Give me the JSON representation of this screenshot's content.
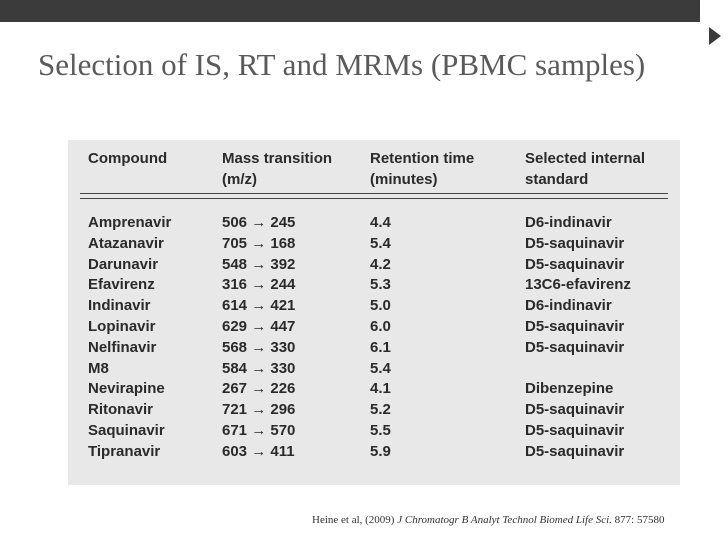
{
  "title": "Selection of IS, RT and MRMs (PBMC samples)",
  "table": {
    "headers": [
      [
        "Compound"
      ],
      [
        "Mass transition",
        "(m/z)"
      ],
      [
        "Retention time",
        "(minutes)"
      ],
      [
        "Selected internal",
        "standard"
      ]
    ],
    "rows": [
      [
        "Amprenavir",
        "506 → 245",
        "4.4",
        "D6-indinavir"
      ],
      [
        "Atazanavir",
        "705 → 168",
        "5.4",
        "D5-saquinavir"
      ],
      [
        "Darunavir",
        "548 → 392",
        "4.2",
        "D5-saquinavir"
      ],
      [
        "Efavirenz",
        "316 → 244",
        "5.3",
        "13C6-efavirenz"
      ],
      [
        "Indinavir",
        "614 → 421",
        "5.0",
        "D6-indinavir"
      ],
      [
        "Lopinavir",
        "629 → 447",
        "6.0",
        "D5-saquinavir"
      ],
      [
        "Nelfinavir",
        "568 → 330",
        "6.1",
        "D5-saquinavir"
      ],
      [
        "M8",
        "584 → 330",
        "5.4"
      ],
      [
        "Nevirapine",
        "267 → 226",
        "4.1",
        "Dibenzepine"
      ],
      [
        "Ritonavir",
        "721 → 296",
        "5.2",
        "D5-saquinavir"
      ],
      [
        "Saquinavir",
        "671 → 570",
        "5.5",
        "D5-saquinavir"
      ],
      [
        "Tipranavir",
        "603 → 411",
        "5.9",
        "D5-saquinavir"
      ]
    ]
  },
  "citation": {
    "authors": "Heine et al, (2009)",
    "journal": "J Chromatogr B Analyt Technol Biomed Life Sci.",
    "details": "877: 57580"
  }
}
